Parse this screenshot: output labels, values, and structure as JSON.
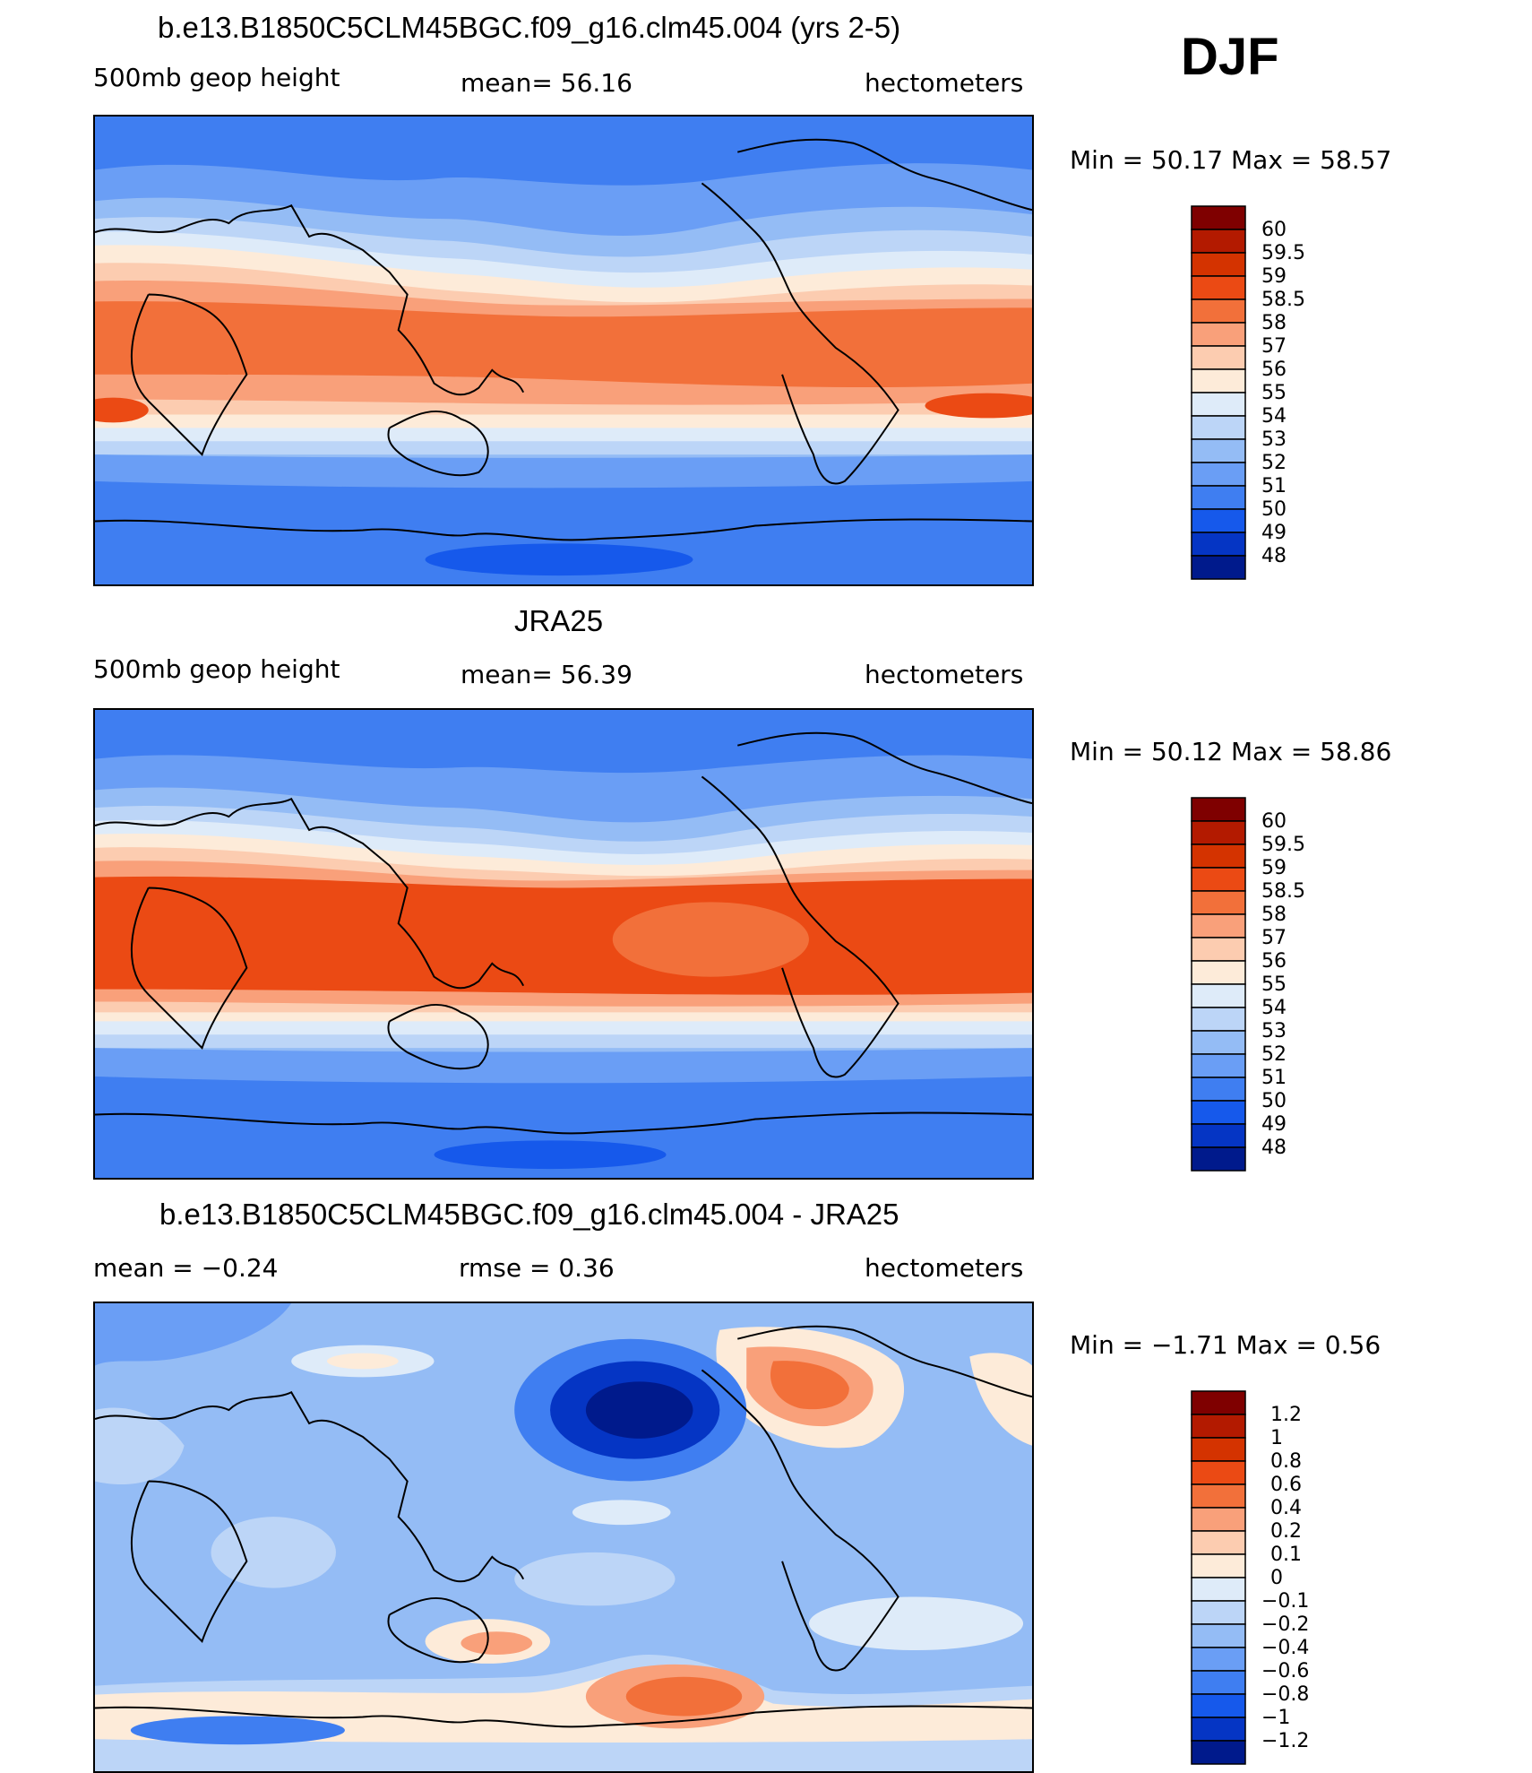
{
  "season": "DJF",
  "panels": [
    {
      "id": "model",
      "title": "b.e13.B1850C5CLM45BGC.f09_g16.clm45.004 (yrs 2-5)",
      "left_label": "500mb  geop  height",
      "center_label": "mean=   56.16",
      "right_label": "hectometers",
      "minmax": "Min  =    50.17  Max  =    58.57",
      "colorbar": {
        "labels": [
          "60",
          "59.5",
          "59",
          "58.5",
          "58",
          "57",
          "56",
          "55",
          "54",
          "53",
          "52",
          "51",
          "50",
          "49",
          "48"
        ],
        "colors": [
          "#7f0000",
          "#b31a00",
          "#d43300",
          "#eb4a14",
          "#f2703a",
          "#f9a07a",
          "#fcccb0",
          "#fdebd9",
          "#deebf9",
          "#bcd5f7",
          "#94bcf5",
          "#6a9ef5",
          "#3f7ef1",
          "#1659eb",
          "#0535c4",
          "#001a8c"
        ]
      },
      "map_colors": [
        "#3f7ef1",
        "#6a9ef5",
        "#94bcf5",
        "#bcd5f7",
        "#deebf9",
        "#fdebd9",
        "#fcccb0",
        "#f9a07a",
        "#f2703a",
        "#eb4a14"
      ]
    },
    {
      "id": "obs",
      "title": "JRA25",
      "left_label": "500mb  geop  height",
      "center_label": "mean=   56.39",
      "right_label": "hectometers",
      "minmax": "Min  =    50.12  Max  =    58.86",
      "colorbar": {
        "labels": [
          "60",
          "59.5",
          "59",
          "58.5",
          "58",
          "57",
          "56",
          "55",
          "54",
          "53",
          "52",
          "51",
          "50",
          "49",
          "48"
        ],
        "colors": [
          "#7f0000",
          "#b31a00",
          "#d43300",
          "#eb4a14",
          "#f2703a",
          "#f9a07a",
          "#fcccb0",
          "#fdebd9",
          "#deebf9",
          "#bcd5f7",
          "#94bcf5",
          "#6a9ef5",
          "#3f7ef1",
          "#1659eb",
          "#0535c4",
          "#001a8c"
        ]
      },
      "map_colors": [
        "#3f7ef1",
        "#6a9ef5",
        "#94bcf5",
        "#bcd5f7",
        "#deebf9",
        "#fdebd9",
        "#fcccb0",
        "#f9a07a",
        "#f2703a",
        "#eb4a14"
      ]
    },
    {
      "id": "diff",
      "title": "b.e13.B1850C5CLM45BGC.f09_g16.clm45.004 - JRA25",
      "left_label": "mean  =    −0.24",
      "center_label": "rmse  =     0.36",
      "right_label": "hectometers",
      "minmax": "Min  =    −1.71  Max  =      0.56",
      "colorbar": {
        "labels": [
          "1.2",
          "1",
          "0.8",
          "0.6",
          "0.4",
          "0.2",
          "0.1",
          "0",
          "−0.1",
          "−0.2",
          "−0.4",
          "−0.6",
          "−0.8",
          "−1",
          "−1.2"
        ],
        "colors": [
          "#7f0000",
          "#b31a00",
          "#d43300",
          "#eb4a14",
          "#f2703a",
          "#f9a07a",
          "#fcccb0",
          "#fdebd9",
          "#deebf9",
          "#bcd5f7",
          "#94bcf5",
          "#6a9ef5",
          "#3f7ef1",
          "#1659eb",
          "#0535c4",
          "#001a8c"
        ]
      },
      "map_colors": [
        "#94bcf5",
        "#6a9ef5",
        "#bcd5f7",
        "#deebf9",
        "#fdebd9",
        "#f9a07a",
        "#f2703a",
        "#0535c4",
        "#001a8c",
        "#3f7ef1"
      ]
    }
  ]
}
